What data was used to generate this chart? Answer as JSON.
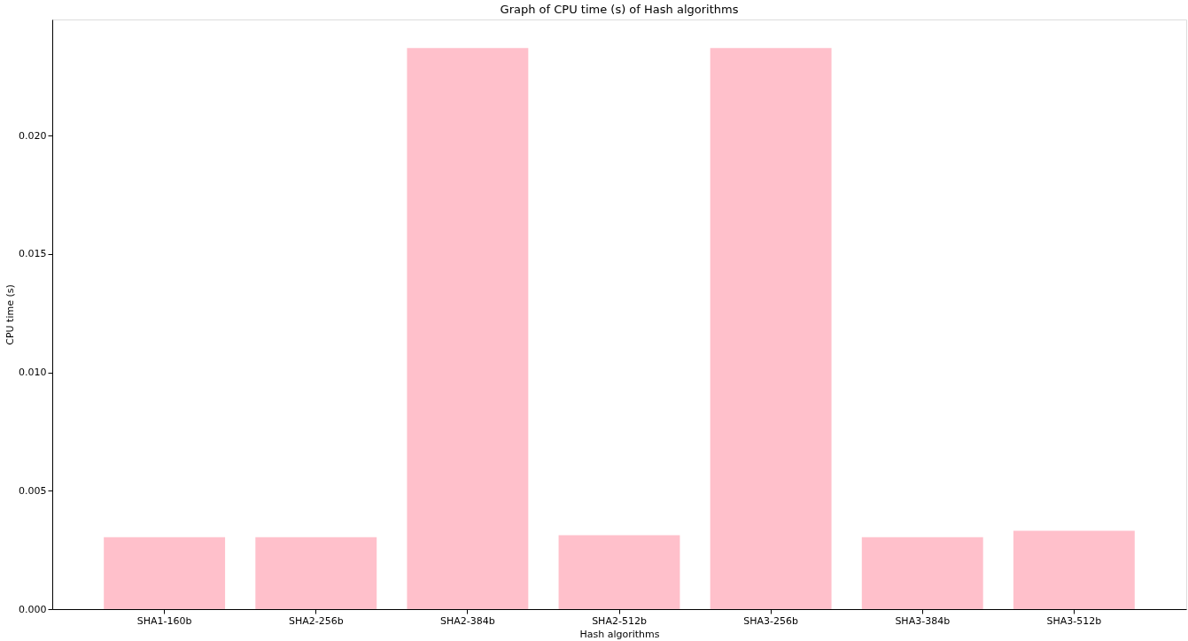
{
  "chart_data": {
    "type": "bar",
    "title": "Graph of CPU time (s) of Hash algorithms",
    "xlabel": "Hash algorithms",
    "ylabel": "CPU time (s)",
    "categories": [
      "SHA1-160b",
      "SHA2-256b",
      "SHA2-384b",
      "SHA2-512b",
      "SHA3-256b",
      "SHA3-384b",
      "SHA3-512b"
    ],
    "values": [
      0.00304,
      0.00304,
      0.02369,
      0.00312,
      0.02369,
      0.00304,
      0.00331
    ],
    "color": "#ffc0cb",
    "ylim": [
      0,
      0.0249
    ],
    "yticks": [
      {
        "value": 0,
        "label": "0.000"
      },
      {
        "value": 0.005,
        "label": "0.005"
      },
      {
        "value": 0.01,
        "label": "0.010"
      },
      {
        "value": 0.015,
        "label": "0.015"
      },
      {
        "value": 0.02,
        "label": "0.020"
      }
    ],
    "grid": false
  }
}
